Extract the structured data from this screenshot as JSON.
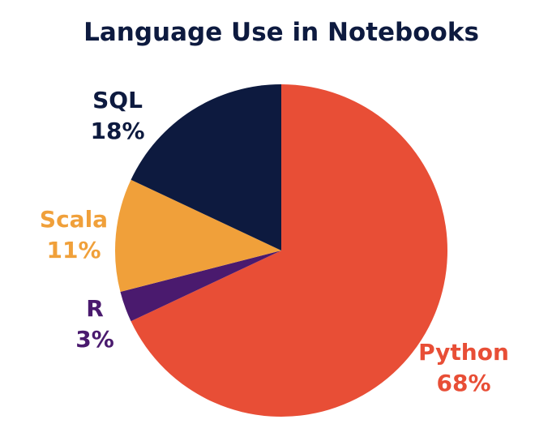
{
  "chart_data": {
    "type": "pie",
    "title": "Language Use in Notebooks",
    "slices": [
      {
        "label": "Python",
        "value": 68,
        "value_label": "68%",
        "color": "#e84e36"
      },
      {
        "label": "R",
        "value": 3,
        "value_label": "3%",
        "color": "#4a1a6e"
      },
      {
        "label": "Scala",
        "value": 11,
        "value_label": "11%",
        "color": "#f0a03a"
      },
      {
        "label": "SQL",
        "value": 18,
        "value_label": "18%",
        "color": "#0d1a3f"
      }
    ],
    "legend": "none",
    "labels": "outside"
  },
  "colors": {
    "title": "#0d1a3f",
    "background": "#ffffff"
  }
}
